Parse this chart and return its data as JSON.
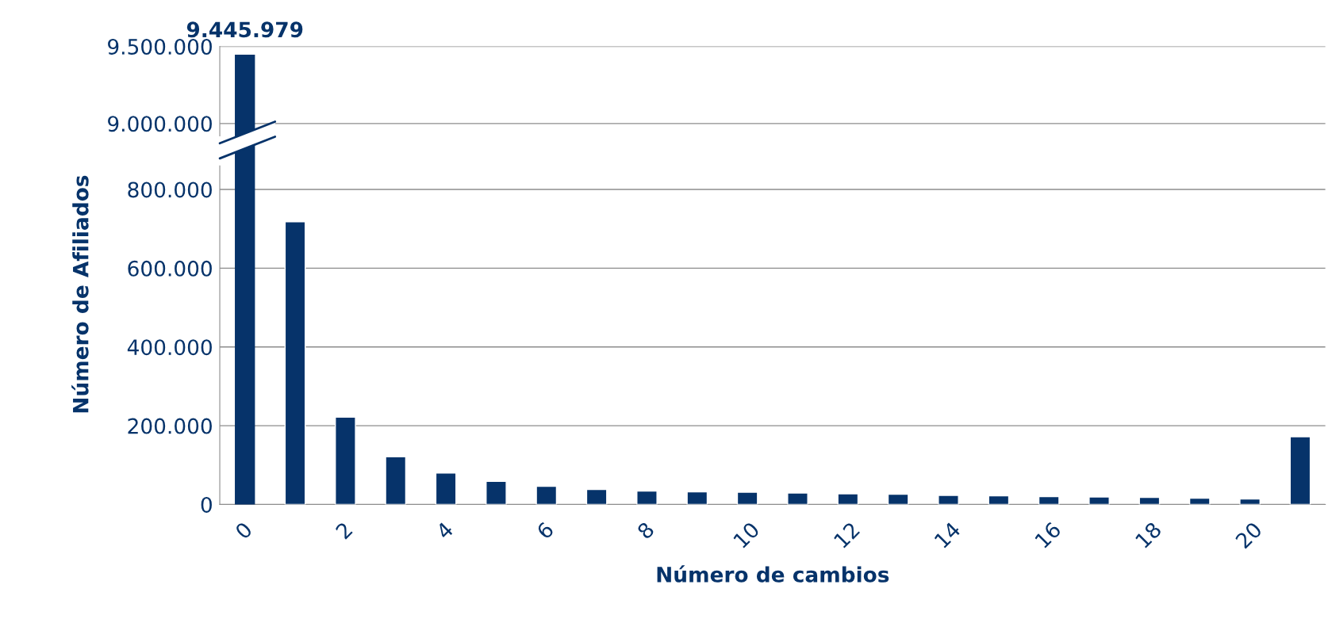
{
  "chart_data": [
    {
      "type": "bar",
      "tick_labels": "y",
      "categories": [
        "0",
        null,
        "2",
        null,
        "4",
        null,
        "6",
        null,
        "8",
        null,
        "10",
        null,
        "12",
        null,
        "14",
        null,
        "16",
        null,
        "18",
        null,
        "20",
        null
      ],
      "values": [
        9445979,
        null,
        null,
        null,
        null,
        null,
        null,
        null,
        null,
        null,
        null,
        null,
        null,
        null,
        null,
        null,
        null,
        null,
        null,
        null,
        null,
        null
      ],
      "value_labels": [
        "9.445.979",
        null,
        null,
        null,
        null,
        null,
        null,
        null,
        null,
        null,
        null,
        null,
        null,
        null,
        null,
        null,
        null,
        null,
        null,
        null,
        null,
        null
      ],
      "color": "#06336a",
      "ylim": [
        8920000,
        9500000
      ],
      "yticks": [
        {
          "value": 9000000,
          "label": "9.000.000"
        },
        {
          "value": 9500000,
          "label": "9.500.000"
        }
      ],
      "grid": "y"
    },
    {
      "type": "bar",
      "xlabel": "Número de cambios",
      "ylabel": "Número de Afiliados",
      "categories": [
        "0",
        null,
        "2",
        null,
        "4",
        null,
        "6",
        null,
        "8",
        null,
        "10",
        null,
        "12",
        null,
        "14",
        null,
        "16",
        null,
        "18",
        null,
        "20",
        null
      ],
      "values": [
        null,
        718000,
        222000,
        121000,
        80000,
        59000,
        46000,
        38000,
        34000,
        32000,
        31000,
        29000,
        27000,
        26000,
        23000,
        22000,
        20000,
        19000,
        18000,
        16000,
        14000,
        172000
      ],
      "color": "#06336a",
      "ylim": [
        0,
        860000
      ],
      "yticks": [
        0,
        {
          "value": 200000,
          "label": "200.000"
        },
        {
          "value": 400000,
          "label": "400.000"
        },
        {
          "value": 600000,
          "label": "600.000"
        },
        {
          "value": 800000,
          "label": "800.000"
        }
      ],
      "grid": "y"
    }
  ]
}
